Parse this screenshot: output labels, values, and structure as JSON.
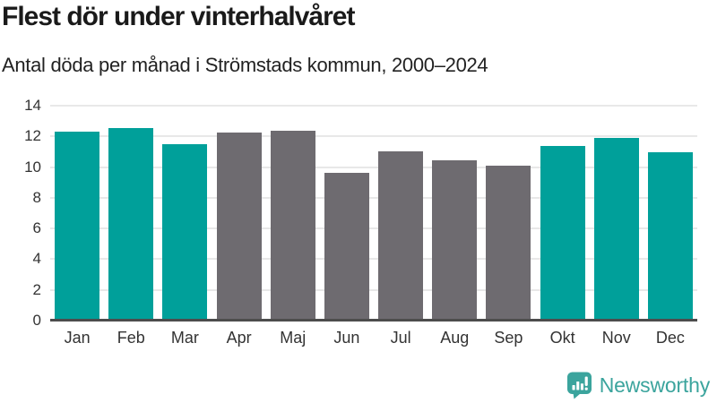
{
  "chart_data": {
    "type": "bar",
    "title": "Flest dör under vinterhalvåret",
    "subtitle": "Antal döda per månad i Strömstads kommun, 2000–2024",
    "categories": [
      "Jan",
      "Feb",
      "Mar",
      "Apr",
      "Maj",
      "Jun",
      "Jul",
      "Aug",
      "Sep",
      "Okt",
      "Nov",
      "Dec"
    ],
    "values": [
      12.3,
      12.55,
      11.5,
      12.25,
      12.35,
      9.65,
      11.05,
      10.45,
      10.1,
      11.35,
      11.9,
      10.95
    ],
    "bar_roles": [
      "highlight",
      "highlight",
      "highlight",
      "muted",
      "muted",
      "muted",
      "muted",
      "muted",
      "muted",
      "highlight",
      "highlight",
      "highlight"
    ],
    "palette": {
      "highlight": "#00a09a",
      "muted": "#6e6b70"
    },
    "xlabel": "",
    "ylabel": "",
    "ylim": [
      0,
      14
    ],
    "yticks": [
      0,
      2,
      4,
      6,
      8,
      10,
      12,
      14
    ],
    "grid": true,
    "legend": "none",
    "grid_color": "#e8e8e8",
    "axis_color": "#4d4d4d",
    "tick_label_color": "#333333"
  },
  "footer": {
    "brand": "Newsworthy",
    "brand_color": "#3ba49d",
    "logo_icon": "bar-chart-speech-bubble"
  }
}
